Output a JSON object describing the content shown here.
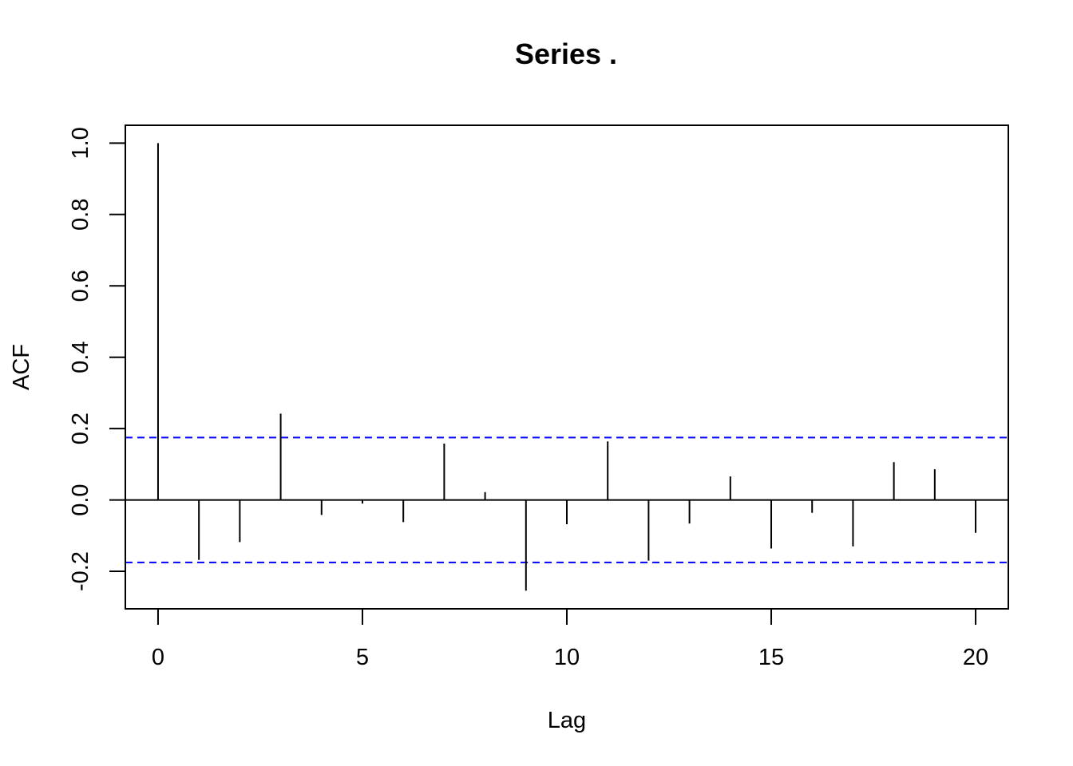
{
  "chart_data": {
    "type": "bar",
    "title": "Series  .",
    "xlabel": "Lag",
    "ylabel": "ACF",
    "xlim": [
      -0.8,
      20.8
    ],
    "ylim": [
      -0.305,
      1.05
    ],
    "x_ticks": [
      0,
      5,
      10,
      15,
      20
    ],
    "y_ticks": [
      -0.2,
      0.0,
      0.2,
      0.4,
      0.6,
      0.8,
      1.0
    ],
    "x_tick_labels": [
      "0",
      "5",
      "10",
      "15",
      "20"
    ],
    "y_tick_labels": [
      "-0.2",
      "0.0",
      "0.2",
      "0.4",
      "0.6",
      "0.8",
      "1.0"
    ],
    "lags": [
      0,
      1,
      2,
      3,
      4,
      5,
      6,
      7,
      8,
      9,
      10,
      11,
      12,
      13,
      14,
      15,
      16,
      17,
      18,
      19,
      20
    ],
    "values": [
      1.0,
      -0.168,
      -0.118,
      0.242,
      -0.042,
      -0.01,
      -0.062,
      0.158,
      0.022,
      -0.254,
      -0.068,
      0.164,
      -0.17,
      -0.066,
      0.066,
      -0.136,
      -0.036,
      -0.13,
      0.106,
      0.086,
      -0.092
    ],
    "confidence_bounds": [
      0.175,
      -0.175
    ],
    "grid": false,
    "colors": {
      "bars": "#000000",
      "confidence": "#0000ff",
      "zero_line": "#000000"
    }
  }
}
